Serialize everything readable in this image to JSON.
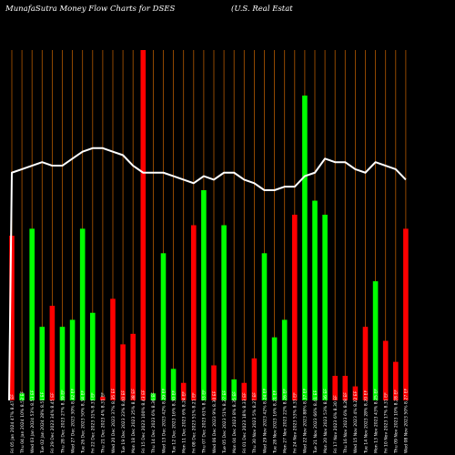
{
  "title": "MunafaSutra  Money Flow  Charts for DSES",
  "subtitle": "(U.S. Real Estat",
  "colors": {
    "background": "#000000",
    "up": "#00ff00",
    "down": "#ff0000",
    "grid": "#b35900",
    "line": "#ffffff"
  },
  "chart_data": {
    "type": "bar",
    "title": "MunafaSutra  Money Flow  Charts for DSES",
    "subtitle": "(U.S. Real Estat",
    "grid": "vertical",
    "ylim": [
      0,
      100
    ],
    "categories": [
      "Fri 05 Jan 2024 47% 8.47 EF",
      "Thu 04 Jan 2024 10% 8.52 EF",
      "Wed 03 Jan 2024 53% 8.53 EF",
      "Tue 02 Jan 2024 28% 8.51 EF",
      "Fri 29 Dec 2023 34% 8.45 EF",
      "Thu 28 Dec 2023 27% 8.39 EF",
      "Wed 27 Dec 2023 30% 8.42 EF",
      "Tue 26 Dec 2023 50% 8.34 EF",
      "Fri 22 Dec 2023 31% 8.33 EF",
      "Thu 21 Dec 2023 4% 8.31 EF",
      "Wed 20 Dec 2023 37% 8.35 EF",
      "Tue 19 Dec 2023 23% 8.40 EF",
      "Mon 18 Dec 2023 25% 8.38 EF",
      "Fri 15 Dec 2023 100% 8.43 EF",
      "Thu 14 Dec 2023 6% 8.36 EF",
      "Wed 13 Dec 2023 42% 8.29 EF",
      "Tue 12 Dec 2023 16% 8.30 EF",
      "Mon 11 Dec 2023 6% 8.24 EF",
      "Fri 08 Dec 2023 51% 8.21 EF",
      "Thu 07 Dec 2023 61% 8.33 EF",
      "Wed 06 Dec 2023 9% 8.30 EF",
      "Tue 05 Dec 2023 51% 8.27 EF",
      "Mon 04 Dec 2023 8% 8.35 EF",
      "Fri 01 Dec 2023 18% 8.33 EF",
      "Thu 30 Nov 2023 5% 8.27 EF",
      "Wed 29 Nov 2023 42% 8.24 EF",
      "Tue 28 Nov 2023 16% 8.21 EF",
      "Mon 27 Nov 2023 22% 8.26 EF",
      "Fri 24 Nov 2023 53% 8.33 EF",
      "Wed 22 Nov 2023 88% 8.37 EF",
      "Tue 21 Nov 2023 66% 8.41 EF",
      "Mon 20 Nov 2023 53% 8.36 EF",
      "Fri 17 Nov 2023 6% 8.30 EF",
      "Thu 16 Nov 2023 6% 8.28 EF",
      "Wed 15 Nov 2023 4% 8.22 EF",
      "Tue 14 Nov 2023 28% 8.20 EF",
      "Mon 13 Nov 2023 43% 8.25 EF",
      "Fri 10 Nov 2023 17% 8.31 EF",
      "Thu 09 Nov 2023 10% 8.28 EF",
      "Wed 08 Nov 2023 50% 8.27 EF"
    ],
    "values": [
      47,
      2,
      49,
      21,
      27,
      21,
      23,
      49,
      25,
      1,
      29,
      16,
      19,
      100,
      2,
      42,
      9,
      5,
      50,
      60,
      10,
      50,
      6,
      5,
      12,
      42,
      18,
      23,
      53,
      87,
      57,
      53,
      7,
      7,
      4,
      21,
      34,
      17,
      11,
      49
    ],
    "directions": [
      "down",
      "up",
      "up",
      "up",
      "down",
      "up",
      "up",
      "up",
      "up",
      "down",
      "down",
      "down",
      "down",
      "down",
      "up",
      "up",
      "up",
      "down",
      "down",
      "up",
      "down",
      "up",
      "up",
      "down",
      "down",
      "up",
      "up",
      "up",
      "down",
      "up",
      "up",
      "up",
      "down",
      "down",
      "down",
      "down",
      "up",
      "down",
      "down",
      "down"
    ],
    "price_line": [
      65,
      66,
      67,
      68,
      67,
      67,
      69,
      71,
      72,
      72,
      71,
      70,
      67,
      65,
      65,
      65,
      64,
      63,
      62,
      64,
      63,
      65,
      65,
      63,
      62,
      60,
      60,
      61,
      61,
      64,
      65,
      69,
      68,
      68,
      66,
      65,
      68,
      67,
      66,
      63
    ]
  }
}
